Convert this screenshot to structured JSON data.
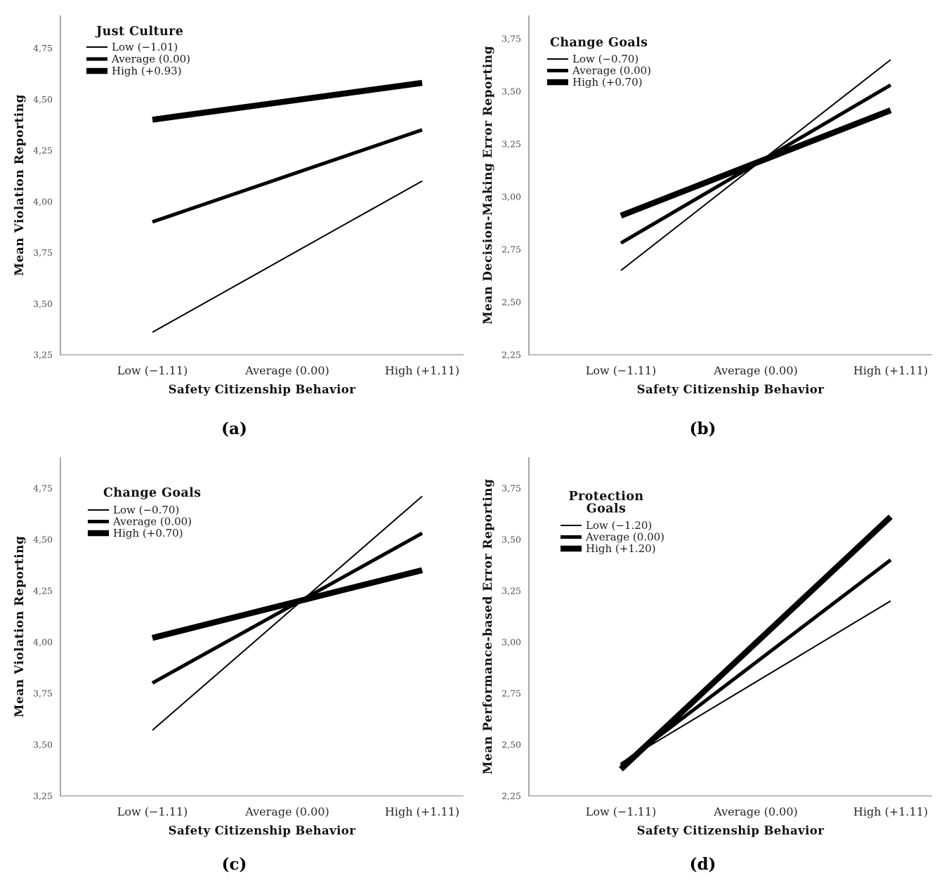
{
  "figure": {
    "style": {
      "background": "#ffffff",
      "series_color": "#000000",
      "axis_color": "#a8a8a8",
      "tick_label_color": "#4d4d4d",
      "category_label_color": "#262626",
      "title_color": "#111111",
      "caption_color": "#000000",
      "stroke_widths": {
        "thin": 2,
        "medium": 5,
        "thick": 8.5
      }
    },
    "panels": [
      {
        "id": "a",
        "caption": "(a)",
        "chart_data": {
          "type": "line",
          "title": "",
          "xlabel": "Safety Citizenship Behavior",
          "ylabel": "Mean Violation Reporting",
          "categories": [
            "Low (−1.11)",
            "Average (0.00)",
            "High (+1.11)"
          ],
          "y_ticks": [
            {
              "label": "3,25",
              "value": 3.25
            },
            {
              "label": "3,50",
              "value": 3.5
            },
            {
              "label": "3,75",
              "value": 3.75
            },
            {
              "label": "4,00",
              "value": 4.0
            },
            {
              "label": "4,25",
              "value": 4.25
            },
            {
              "label": "4,50",
              "value": 4.5
            },
            {
              "label": "4,75",
              "value": 4.75
            }
          ],
          "ylim": [
            3.25,
            4.91
          ],
          "grid": false,
          "legend": {
            "title_lines": [
              "Just Culture"
            ],
            "position": "upper-left"
          },
          "series": [
            {
              "name": "Low (−1.01)",
              "level": "low",
              "weight": "thin",
              "values": [
                3.36,
                3.73,
                4.1
              ]
            },
            {
              "name": "Average (0.00)",
              "level": "average",
              "weight": "medium",
              "values": [
                3.9,
                4.125,
                4.35
              ]
            },
            {
              "name": "High (+0.93)",
              "level": "high",
              "weight": "thick",
              "values": [
                4.4,
                4.49,
                4.58
              ]
            }
          ]
        }
      },
      {
        "id": "b",
        "caption": "(b)",
        "chart_data": {
          "type": "line",
          "title": "",
          "xlabel": "Safety Citizenship Behavior",
          "ylabel": "Mean Decision-Making Error Reporting",
          "categories": [
            "Low (−1.11)",
            "Average (0.00)",
            "High (+1.11)"
          ],
          "y_ticks": [
            {
              "label": "2,25",
              "value": 2.25
            },
            {
              "label": "2,50",
              "value": 2.5
            },
            {
              "label": "2,75",
              "value": 2.75
            },
            {
              "label": "3,00",
              "value": 3.0
            },
            {
              "label": "3,25",
              "value": 3.25
            },
            {
              "label": "3,50",
              "value": 3.5
            },
            {
              "label": "3,75",
              "value": 3.75
            }
          ],
          "ylim": [
            2.25,
            3.86
          ],
          "grid": false,
          "legend": {
            "title_lines": [
              "Change Goals"
            ],
            "position": "upper-left"
          },
          "series": [
            {
              "name": "Low (−0.70)",
              "level": "low",
              "weight": "thin",
              "values": [
                2.65,
                3.15,
                3.65
              ]
            },
            {
              "name": "Average (0.00)",
              "level": "average",
              "weight": "medium",
              "values": [
                2.78,
                3.155,
                3.53
              ]
            },
            {
              "name": "High (+0.70)",
              "level": "high",
              "weight": "thick",
              "values": [
                2.91,
                3.16,
                3.41
              ]
            }
          ]
        }
      },
      {
        "id": "c",
        "caption": "(c)",
        "chart_data": {
          "type": "line",
          "title": "",
          "xlabel": "Safety Citizenship Behavior",
          "ylabel": "Mean Violation Reporting",
          "categories": [
            "Low (−1.11)",
            "Average (0.00)",
            "High (+1.11)"
          ],
          "y_ticks": [
            {
              "label": "3,25",
              "value": 3.25
            },
            {
              "label": "3,50",
              "value": 3.5
            },
            {
              "label": "3,75",
              "value": 3.75
            },
            {
              "label": "4,00",
              "value": 4.0
            },
            {
              "label": "4,25",
              "value": 4.25
            },
            {
              "label": "4,50",
              "value": 4.5
            },
            {
              "label": "4,75",
              "value": 4.75
            }
          ],
          "ylim": [
            3.25,
            4.9
          ],
          "grid": false,
          "legend": {
            "title_lines": [
              "Change Goals"
            ],
            "position": "upper-left"
          },
          "series": [
            {
              "name": "Low (−0.70)",
              "level": "low",
              "weight": "thin",
              "values": [
                3.57,
                4.14,
                4.71
              ]
            },
            {
              "name": "Average (0.00)",
              "level": "average",
              "weight": "medium",
              "values": [
                3.8,
                4.165,
                4.53
              ]
            },
            {
              "name": "High (+0.70)",
              "level": "high",
              "weight": "thick",
              "values": [
                4.02,
                4.185,
                4.35
              ]
            }
          ]
        }
      },
      {
        "id": "d",
        "caption": "(d)",
        "chart_data": {
          "type": "line",
          "title": "",
          "xlabel": "Safety Citizenship Behavior",
          "ylabel": "Mean Performance-based Error Reporting",
          "categories": [
            "Low (−1.11)",
            "Average (0.00)",
            "High (+1.11)"
          ],
          "y_ticks": [
            {
              "label": "2,25",
              "value": 2.25
            },
            {
              "label": "2,50",
              "value": 2.5
            },
            {
              "label": "2,75",
              "value": 2.75
            },
            {
              "label": "3,00",
              "value": 3.0
            },
            {
              "label": "3,25",
              "value": 3.25
            },
            {
              "label": "3,50",
              "value": 3.5
            },
            {
              "label": "3,75",
              "value": 3.75
            }
          ],
          "ylim": [
            2.25,
            3.9
          ],
          "grid": false,
          "legend": {
            "title_lines": [
              "Protection",
              "Goals"
            ],
            "position": "upper-left"
          },
          "series": [
            {
              "name": "Low (−1.20)",
              "level": "low",
              "weight": "thin",
              "values": [
                2.41,
                2.805,
                3.2
              ]
            },
            {
              "name": "Average (0.00)",
              "level": "average",
              "weight": "medium",
              "values": [
                2.4,
                2.9,
                3.4
              ]
            },
            {
              "name": "High (+1.20)",
              "level": "high",
              "weight": "thick",
              "values": [
                2.38,
                2.995,
                3.61
              ]
            }
          ]
        }
      }
    ]
  }
}
